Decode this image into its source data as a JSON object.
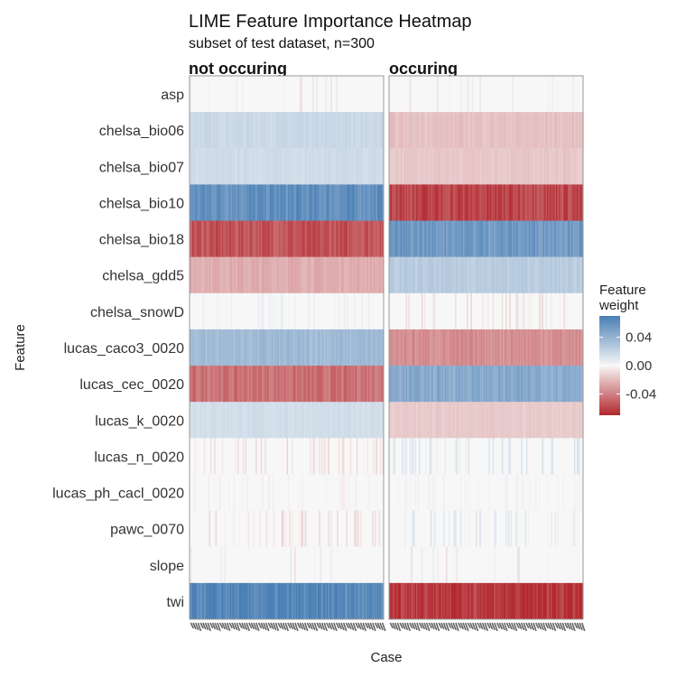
{
  "chart_data": {
    "type": "heatmap",
    "title": "LIME Feature Importance Heatmap",
    "subtitle": "subset of test dataset, n=300",
    "xlabel": "Case",
    "ylabel": "Feature",
    "facets": [
      "not occuring",
      "occuring"
    ],
    "features": [
      "asp",
      "chelsa_bio06",
      "chelsa_bio07",
      "chelsa_bio10",
      "chelsa_bio18",
      "chelsa_gdd5",
      "chelsa_snowD",
      "lucas_caco3_0020",
      "lucas_cec_0020",
      "lucas_k_0020",
      "lucas_n_0020",
      "lucas_ph_cacl_0020",
      "pawc_0070",
      "slope",
      "twi"
    ],
    "approx_mean_weight": {
      "not occuring": [
        0.0,
        0.018,
        0.016,
        0.06,
        -0.055,
        -0.025,
        0.003,
        0.035,
        -0.045,
        0.015,
        -0.006,
        -0.002,
        -0.006,
        0.0,
        0.065
      ],
      "occuring": [
        0.0,
        -0.018,
        -0.016,
        -0.06,
        0.055,
        0.025,
        -0.006,
        -0.035,
        0.045,
        -0.015,
        0.006,
        0.002,
        0.006,
        0.0,
        -0.065
      ]
    },
    "legend": {
      "title": "Feature weight",
      "ticks": [
        "0.04",
        "0.00",
        "-0.04"
      ],
      "placement": "right",
      "colors": {
        "high": "#4a7fb5",
        "mid": "#f7f7f7",
        "low": "#b2272d"
      }
    }
  }
}
